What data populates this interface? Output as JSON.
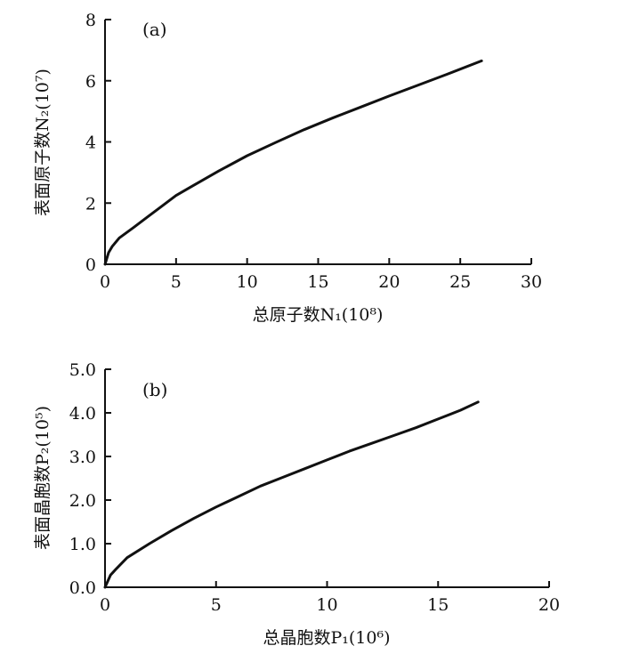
{
  "chart_data": [
    {
      "type": "line",
      "panel_label": "(a)",
      "xlabel": "总原子数N₁(10⁸)",
      "ylabel": "表面原子数N₂(10⁷)",
      "xlim": [
        0,
        30
      ],
      "ylim": [
        0,
        8
      ],
      "xticks": [
        "0",
        "5",
        "10",
        "15",
        "20",
        "25",
        "30"
      ],
      "yticks": [
        "0",
        "2",
        "4",
        "6",
        "8"
      ],
      "grid": false,
      "series": [
        {
          "x": [
            0,
            0.25,
            0.5,
            1,
            2,
            3,
            4,
            5,
            6,
            8,
            10,
            12,
            14,
            16,
            18,
            20,
            22,
            24,
            26.5
          ],
          "y": [
            0,
            0.38,
            0.58,
            0.86,
            1.2,
            1.55,
            1.9,
            2.25,
            2.52,
            3.05,
            3.55,
            3.98,
            4.4,
            4.78,
            5.14,
            5.5,
            5.85,
            6.2,
            6.65
          ]
        }
      ]
    },
    {
      "type": "line",
      "panel_label": "(b)",
      "xlabel": "总晶胞数P₁(10⁶)",
      "ylabel": "表面晶胞数P₂(10⁵)",
      "xlim": [
        0,
        20
      ],
      "ylim": [
        0,
        5
      ],
      "xticks": [
        "0",
        "5",
        "10",
        "15",
        "20"
      ],
      "yticks": [
        "0.0",
        "1.0",
        "2.0",
        "3.0",
        "4.0",
        "5.0"
      ],
      "grid": false,
      "series": [
        {
          "x": [
            0,
            0.25,
            0.5,
            1,
            2,
            3,
            4,
            5,
            6,
            7,
            8,
            9,
            10,
            11,
            12,
            13,
            14,
            15,
            16,
            16.8
          ],
          "y": [
            0,
            0.28,
            0.42,
            0.68,
            1.0,
            1.3,
            1.58,
            1.84,
            2.08,
            2.32,
            2.52,
            2.72,
            2.92,
            3.12,
            3.3,
            3.48,
            3.66,
            3.86,
            4.06,
            4.25
          ]
        }
      ]
    }
  ]
}
